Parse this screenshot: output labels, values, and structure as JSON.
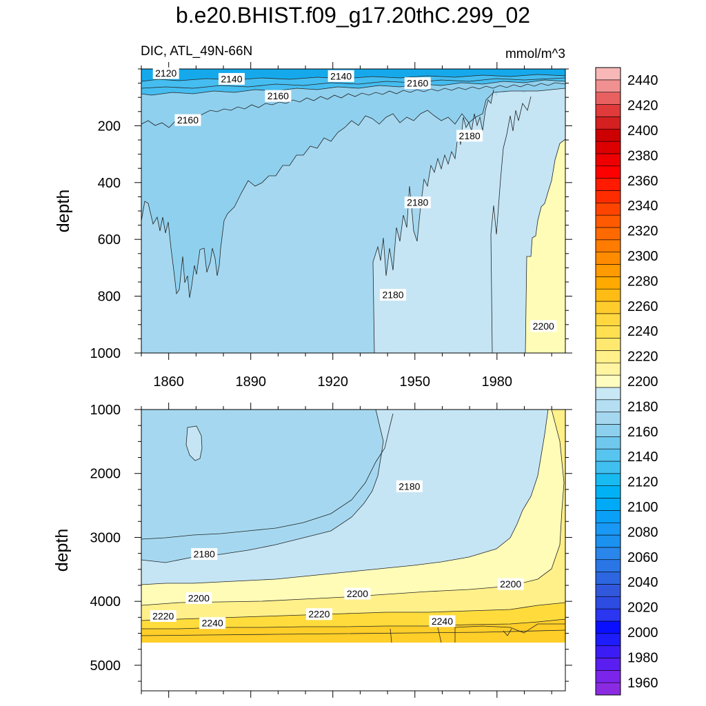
{
  "title": "b.e20.BHIST.f09_g17.20thC.299_02",
  "subtitle_left": "DIC, ATL_49N-66N",
  "units": "mmol/m^3",
  "colors": {
    "upper_ocean": "#15a9ec",
    "band_2140": "#45bdf0",
    "band_2160": "#8fd0ee",
    "band_2170": "#a5d8f0",
    "band_2180": "#c5e5f5",
    "band_2200": "#fffcb8",
    "band_2220": "#fff08a",
    "band_2240": "#ffdc3c",
    "band_2250": "#ffce28"
  },
  "chart_data": [
    {
      "type": "heatmap",
      "panel": "upper",
      "title": "",
      "xlabel": "",
      "ylabel": "depth",
      "xlim": [
        1850,
        2005
      ],
      "ylim": [
        1000,
        0
      ],
      "x_ticks": [
        1860,
        1890,
        1920,
        1950,
        1980
      ],
      "y_ticks": [
        200,
        400,
        600,
        800,
        1000
      ],
      "contour_labels": [
        {
          "text": "2120",
          "x": 1859,
          "y": 15
        },
        {
          "text": "2140",
          "x": 1883,
          "y": 35
        },
        {
          "text": "2160",
          "x": 1900,
          "y": 95
        },
        {
          "text": "2160",
          "x": 1867,
          "y": 180
        },
        {
          "text": "2140",
          "x": 1923,
          "y": 25
        },
        {
          "text": "2160",
          "x": 1951,
          "y": 50
        },
        {
          "text": "2180",
          "x": 1970,
          "y": 235
        },
        {
          "text": "2180",
          "x": 1951,
          "y": 470
        },
        {
          "text": "2180",
          "x": 1942,
          "y": 795
        },
        {
          "text": "2200",
          "x": 1997,
          "y": 905
        }
      ]
    },
    {
      "type": "heatmap",
      "panel": "lower",
      "title": "",
      "xlabel": "",
      "ylabel": "depth",
      "xlim": [
        1850,
        2005
      ],
      "ylim": [
        5400,
        1000
      ],
      "x_ticks": [
        1860,
        1890,
        1920,
        1950,
        1980
      ],
      "y_ticks": [
        1000,
        2000,
        3000,
        4000,
        5000
      ],
      "contour_labels": [
        {
          "text": "2180",
          "x": 1948,
          "y": 2200
        },
        {
          "text": "2180",
          "x": 1873,
          "y": 3260
        },
        {
          "text": "2200",
          "x": 1871,
          "y": 3950
        },
        {
          "text": "2200",
          "x": 1929,
          "y": 3880
        },
        {
          "text": "2200",
          "x": 1985,
          "y": 3730
        },
        {
          "text": "2220",
          "x": 1858,
          "y": 4230
        },
        {
          "text": "2220",
          "x": 1915,
          "y": 4200
        },
        {
          "text": "2240",
          "x": 1876,
          "y": 4340
        },
        {
          "text": "2240",
          "x": 1960,
          "y": 4310
        }
      ]
    }
  ],
  "colorbar": {
    "levels": [
      "1950",
      "1960",
      "1970",
      "1980",
      "1990",
      "2000",
      "2010",
      "2020",
      "2030",
      "2040",
      "2050",
      "2060",
      "2070",
      "2080",
      "2090",
      "2100",
      "2110",
      "2120",
      "2130",
      "2140",
      "2150",
      "2160",
      "2170",
      "2180",
      "2190",
      "2200",
      "2210",
      "2220",
      "2230",
      "2240",
      "2250",
      "2260",
      "2270",
      "2280",
      "2290",
      "2300",
      "2310",
      "2320",
      "2330",
      "2340",
      "2350",
      "2360",
      "2370",
      "2380",
      "2390",
      "2400",
      "2410",
      "2420",
      "2430",
      "2440",
      "2450"
    ],
    "colors": [
      "#8a2be2",
      "#7b24ea",
      "#5a1ef0",
      "#3c1cf4",
      "#1e1cfa",
      "#0a10ff",
      "#2a36f0",
      "#2d4ce2",
      "#3158dc",
      "#2c66e0",
      "#2a76e6",
      "#2a86ea",
      "#1c92f0",
      "#1a98f5",
      "#0aa0f8",
      "#00aaf7",
      "#00b2f5",
      "#18baf2",
      "#40c0f0",
      "#58c4f0",
      "#70c8ee",
      "#8cd0ee",
      "#a5d8f0",
      "#b4def2",
      "#c8e8f6",
      "#fffcc0",
      "#fff4a0",
      "#fff08a",
      "#ffe870",
      "#ffe050",
      "#ffd840",
      "#ffcc2c",
      "#ffbc14",
      "#ffaa00",
      "#ff9a00",
      "#ff8c00",
      "#ff7c00",
      "#ff6a00",
      "#ff5a00",
      "#ff4400",
      "#ff2c00",
      "#ff1a00",
      "#ff0000",
      "#ee0000",
      "#dd0000",
      "#cc0000",
      "#d42020",
      "#e03a3a",
      "#e86060",
      "#f09090",
      "#f8b8b8"
    ],
    "tick_labels": [
      "1960",
      "1980",
      "2000",
      "2020",
      "2040",
      "2060",
      "2080",
      "2100",
      "2120",
      "2140",
      "2160",
      "2180",
      "2200",
      "2220",
      "2240",
      "2260",
      "2280",
      "2300",
      "2320",
      "2340",
      "2360",
      "2380",
      "2400",
      "2420",
      "2440"
    ]
  }
}
